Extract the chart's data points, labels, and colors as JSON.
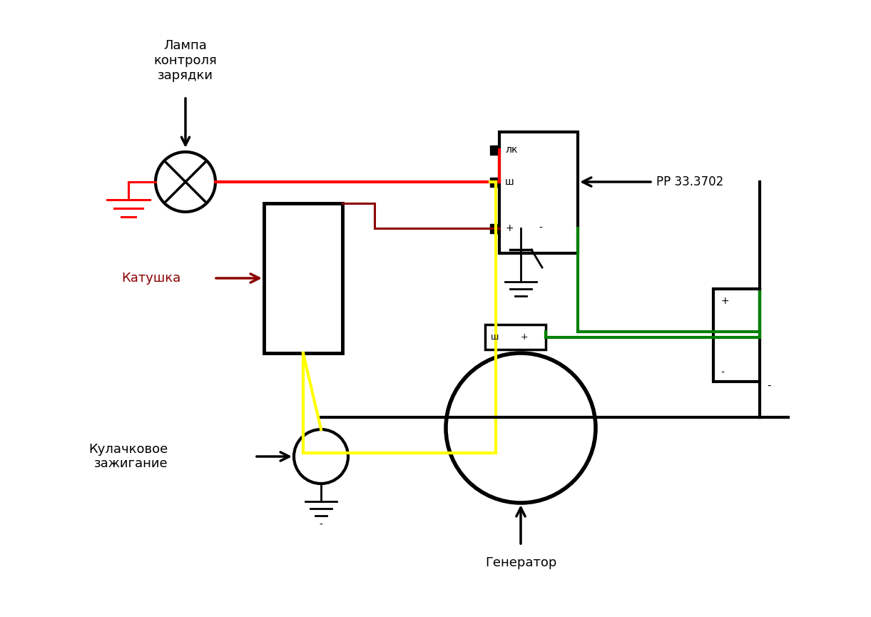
{
  "bg_color": "#ffffff",
  "title": "",
  "fig_w": 12.21,
  "fig_h": 8.65,
  "colors": {
    "red": "#ff0000",
    "dark_red": "#8b0000",
    "yellow": "#ffff00",
    "green": "#008000",
    "black": "#000000",
    "white": "#ffffff"
  },
  "labels": {
    "lampa": "Лампа\nконтроля\nзарядки",
    "katushka": "Катушка",
    "kulachkovoe": "Кулачковое\nзажигание",
    "generator": "Генератор",
    "rr": "РР 33.3702",
    "lk": "лк",
    "sh": "ш",
    "plus": "+",
    "minus": "-"
  }
}
